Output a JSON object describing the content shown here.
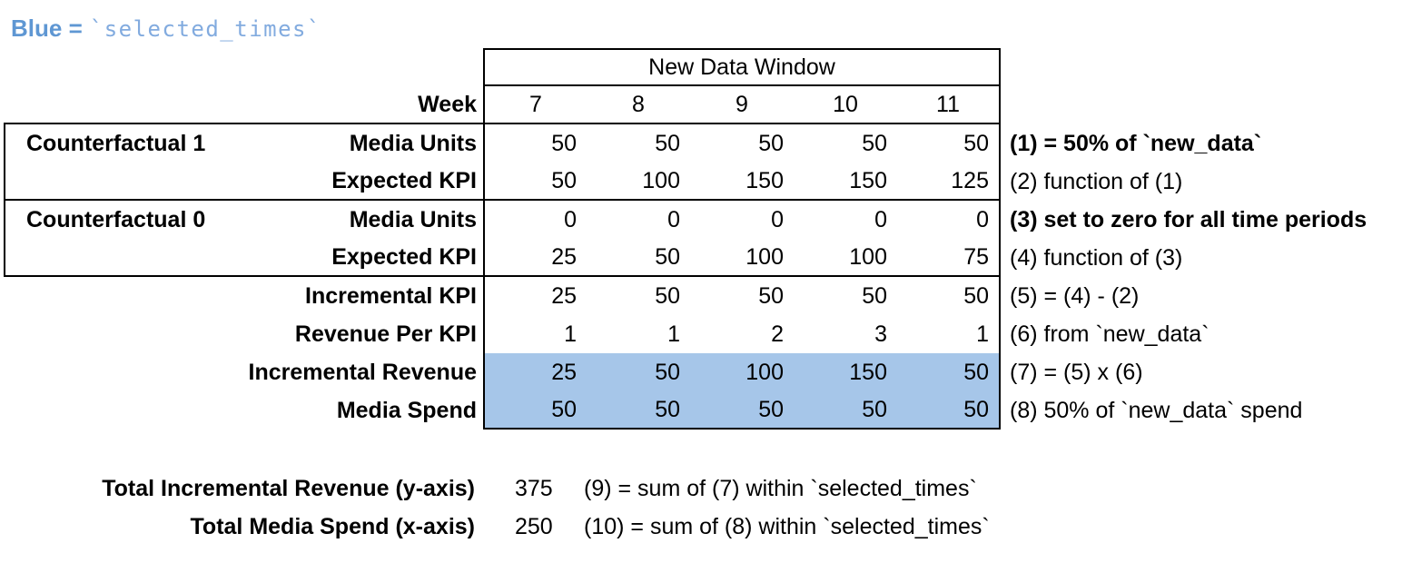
{
  "legend": {
    "label": "Blue =",
    "code": "`selected_times`"
  },
  "colors": {
    "highlight_blue": "#a6c6e9",
    "legend_label_blue": "#5f97d3",
    "legend_code_blue": "#82abdf",
    "border": "#000000"
  },
  "table": {
    "header": "New Data Window",
    "week_label": "Week",
    "weeks": [
      "7",
      "8",
      "9",
      "10",
      "11"
    ],
    "rows": [
      {
        "group": "Counterfactual 1",
        "label": "Media Units",
        "values": [
          "50",
          "50",
          "50",
          "50",
          "50"
        ],
        "note": "(1) = 50% of `new_data`"
      },
      {
        "group": "",
        "label": "Expected KPI",
        "values": [
          "50",
          "100",
          "150",
          "150",
          "125"
        ],
        "note": "(2) function of (1)"
      },
      {
        "group": "Counterfactual 0",
        "label": "Media Units",
        "values": [
          "0",
          "0",
          "0",
          "0",
          "0"
        ],
        "note": "(3) set to zero for all time periods"
      },
      {
        "group": "",
        "label": "Expected KPI",
        "values": [
          "25",
          "50",
          "100",
          "100",
          "75"
        ],
        "note": "(4) function of (3)"
      },
      {
        "group": "",
        "label": "Incremental KPI",
        "values": [
          "25",
          "50",
          "50",
          "50",
          "50"
        ],
        "note": "(5) = (4) - (2)"
      },
      {
        "group": "",
        "label": "Revenue Per KPI",
        "values": [
          "1",
          "1",
          "2",
          "3",
          "1"
        ],
        "note": "(6) from `new_data`"
      },
      {
        "group": "",
        "label": "Incremental Revenue",
        "values": [
          "25",
          "50",
          "100",
          "150",
          "50"
        ],
        "note": "(7) = (5) x (6)",
        "highlighted": true
      },
      {
        "group": "",
        "label": "Media Spend",
        "values": [
          "50",
          "50",
          "50",
          "50",
          "50"
        ],
        "note": "(8) 50% of `new_data` spend",
        "highlighted": true
      }
    ]
  },
  "totals": [
    {
      "label": "Total Incremental Revenue (y-axis)",
      "value": "375",
      "note": "(9) = sum of (7) within `selected_times`"
    },
    {
      "label": "Total Media Spend (x-axis)",
      "value": "250",
      "note": "(10) = sum of (8) within `selected_times`"
    }
  ]
}
